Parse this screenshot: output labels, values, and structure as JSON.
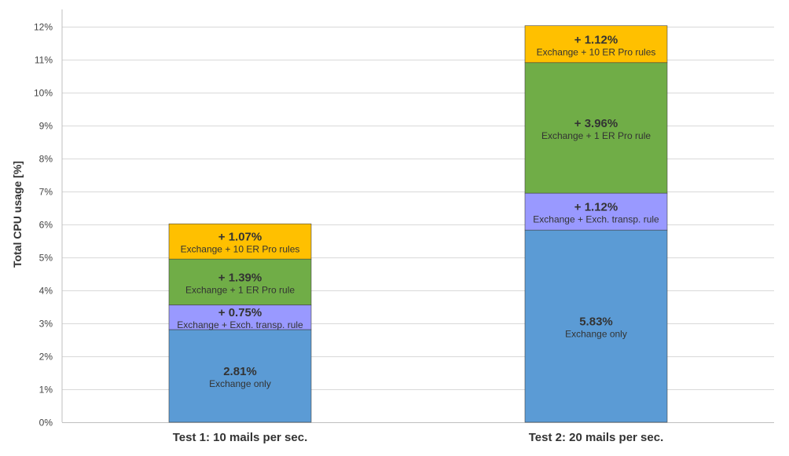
{
  "chart_data": {
    "type": "bar",
    "stacked": true,
    "ylabel": "Total CPU usage [%]",
    "ylim": [
      0,
      12.5
    ],
    "y_ticks": [
      0,
      1,
      2,
      3,
      4,
      5,
      6,
      7,
      8,
      9,
      10,
      11,
      12
    ],
    "y_tick_labels": [
      "0%",
      "1%",
      "2%",
      "3%",
      "4%",
      "5%",
      "6%",
      "7%",
      "8%",
      "9%",
      "10%",
      "11%",
      "12%"
    ],
    "grid": true,
    "categories": [
      "Test 1: 10 mails per sec.",
      "Test 2: 20 mails per sec."
    ],
    "series": [
      {
        "color": "#5B9BD5",
        "values": [
          2.81,
          5.83
        ],
        "value_labels": [
          "2.81%",
          "5.83%"
        ],
        "captions": [
          "Exchange only",
          "Exchange only"
        ]
      },
      {
        "color": "#9999FF",
        "values": [
          0.75,
          1.12
        ],
        "value_labels": [
          "+ 0.75%",
          "+ 1.12%"
        ],
        "captions": [
          "Exchange + Exch. transp. rule",
          "Exchange + Exch. transp. rule"
        ]
      },
      {
        "color": "#70AD47",
        "values": [
          1.39,
          3.96
        ],
        "value_labels": [
          "+ 1.39%",
          "+ 3.96%"
        ],
        "captions": [
          "Exchange + 1 ER Pro rule",
          "Exchange + 1 ER Pro rule"
        ]
      },
      {
        "color": "#FFC000",
        "values": [
          1.07,
          1.12
        ],
        "value_labels": [
          "+ 1.07%",
          "+ 1.12%"
        ],
        "captions": [
          "Exchange + 10 ER Pro rules",
          "Exchange + 10 ER Pro rules"
        ]
      }
    ]
  }
}
